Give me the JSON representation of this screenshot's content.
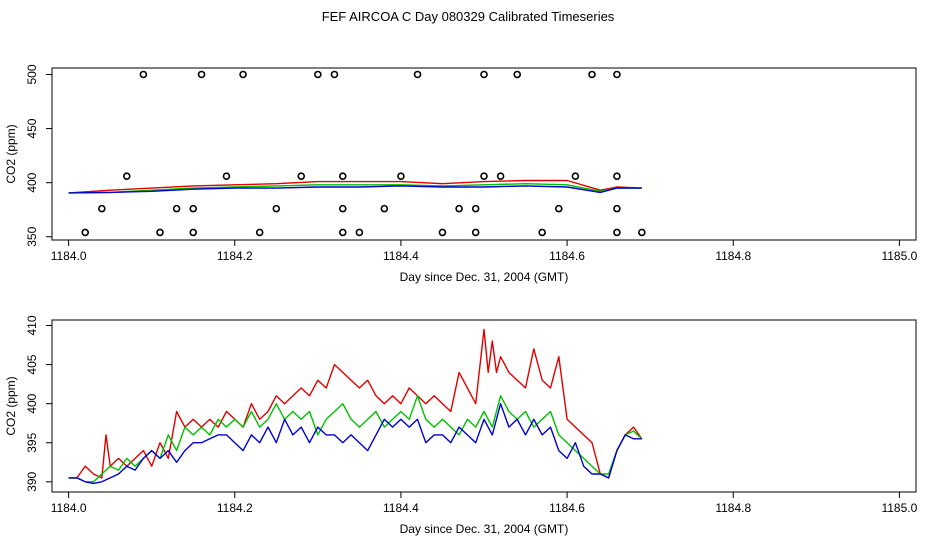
{
  "title": "FEF AIRCOA C  Day 080329  Calibrated Timeseries",
  "colors": {
    "red": "#e00000",
    "green": "#00c000",
    "blue": "#0000d0",
    "black": "#000000"
  },
  "chart_data": [
    {
      "type": "line+scatter",
      "xlabel": "Day since Dec. 31, 2004 (GMT)",
      "ylabel": "CO2 (ppm)",
      "xlim": [
        1183.98,
        1185.02
      ],
      "ylim": [
        347,
        506
      ],
      "xticks": [
        "1184.0",
        "1184.2",
        "1184.4",
        "1184.6",
        "1184.8",
        "1185.0"
      ],
      "yticks": [
        "350",
        "400",
        "450",
        "500"
      ],
      "series": [
        {
          "name": "red",
          "color": "#e00000",
          "x": [
            1184.0,
            1184.05,
            1184.1,
            1184.15,
            1184.2,
            1184.25,
            1184.3,
            1184.35,
            1184.4,
            1184.45,
            1184.5,
            1184.55,
            1184.6,
            1184.64,
            1184.66,
            1184.69
          ],
          "y": [
            390.5,
            393,
            395,
            397,
            398,
            399,
            401,
            401,
            401,
            399,
            401,
            402,
            402,
            393,
            396,
            395
          ]
        },
        {
          "name": "green",
          "color": "#00c000",
          "x": [
            1184.0,
            1184.05,
            1184.1,
            1184.15,
            1184.2,
            1184.25,
            1184.3,
            1184.35,
            1184.4,
            1184.45,
            1184.5,
            1184.55,
            1184.6,
            1184.64,
            1184.66,
            1184.69
          ],
          "y": [
            390.5,
            391,
            393,
            395,
            396,
            397,
            398,
            398,
            398,
            397,
            398,
            399,
            398,
            392,
            395,
            395
          ]
        },
        {
          "name": "blue",
          "color": "#0000d0",
          "x": [
            1184.0,
            1184.05,
            1184.1,
            1184.15,
            1184.2,
            1184.25,
            1184.3,
            1184.35,
            1184.4,
            1184.45,
            1184.5,
            1184.55,
            1184.6,
            1184.64,
            1184.66,
            1184.69
          ],
          "y": [
            390.5,
            391,
            392,
            394,
            395,
            395,
            396,
            396,
            397,
            396,
            396,
            397,
            396,
            391,
            395,
            395
          ]
        }
      ],
      "scatter": {
        "name": "open circles",
        "color": "#000000",
        "x": [
          1184.09,
          1184.16,
          1184.21,
          1184.3,
          1184.32,
          1184.42,
          1184.5,
          1184.54,
          1184.63,
          1184.66,
          1184.07,
          1184.19,
          1184.28,
          1184.33,
          1184.4,
          1184.5,
          1184.52,
          1184.61,
          1184.66,
          1184.04,
          1184.13,
          1184.15,
          1184.25,
          1184.33,
          1184.38,
          1184.47,
          1184.49,
          1184.59,
          1184.66,
          1184.02,
          1184.11,
          1184.15,
          1184.23,
          1184.33,
          1184.35,
          1184.45,
          1184.49,
          1184.57,
          1184.66,
          1184.69
        ],
        "y": [
          500,
          500,
          500,
          500,
          500,
          500,
          500,
          500,
          500,
          500,
          406,
          406,
          406,
          406,
          406,
          406,
          406,
          406,
          406,
          376,
          376,
          376,
          376,
          376,
          376,
          376,
          376,
          376,
          376,
          354,
          354,
          354,
          354,
          354,
          354,
          354,
          354,
          354,
          354,
          354
        ]
      }
    },
    {
      "type": "line",
      "xlabel": "Day since Dec. 31, 2004 (GMT)",
      "ylabel": "CO2 (ppm)",
      "xlim": [
        1183.98,
        1185.02
      ],
      "ylim": [
        388.7,
        410.7
      ],
      "xticks": [
        "1184.0",
        "1184.2",
        "1184.4",
        "1184.6",
        "1184.8",
        "1185.0"
      ],
      "yticks": [
        "390",
        "395",
        "400",
        "405",
        "410"
      ],
      "series": [
        {
          "name": "red",
          "color": "#e00000",
          "x": [
            1184.0,
            1184.01,
            1184.02,
            1184.03,
            1184.04,
            1184.045,
            1184.05,
            1184.06,
            1184.07,
            1184.08,
            1184.09,
            1184.1,
            1184.11,
            1184.12,
            1184.13,
            1184.14,
            1184.15,
            1184.16,
            1184.17,
            1184.18,
            1184.19,
            1184.2,
            1184.21,
            1184.22,
            1184.23,
            1184.24,
            1184.25,
            1184.26,
            1184.27,
            1184.28,
            1184.29,
            1184.3,
            1184.31,
            1184.32,
            1184.33,
            1184.34,
            1184.35,
            1184.36,
            1184.37,
            1184.38,
            1184.39,
            1184.4,
            1184.41,
            1184.42,
            1184.43,
            1184.44,
            1184.45,
            1184.46,
            1184.47,
            1184.48,
            1184.49,
            1184.5,
            1184.505,
            1184.51,
            1184.515,
            1184.52,
            1184.525,
            1184.53,
            1184.54,
            1184.55,
            1184.56,
            1184.57,
            1184.58,
            1184.59,
            1184.6,
            1184.61,
            1184.62,
            1184.63,
            1184.64,
            1184.65,
            1184.66,
            1184.67,
            1184.68,
            1184.69
          ],
          "y": [
            390.5,
            390.5,
            392,
            391,
            390.5,
            396,
            392,
            393,
            392,
            393,
            394,
            392,
            395,
            393,
            399,
            397,
            398,
            397,
            398,
            397,
            399,
            398,
            397,
            400,
            398,
            399,
            401,
            400,
            401,
            402,
            401,
            403,
            402,
            405,
            404,
            403,
            402,
            403,
            401,
            400,
            401,
            400,
            402,
            401,
            400,
            401,
            400,
            399,
            404,
            402,
            400,
            409.5,
            404,
            408,
            404,
            406,
            405,
            404,
            403,
            402,
            407,
            403,
            402,
            406,
            398,
            397,
            396,
            395,
            391,
            390.5,
            394,
            396,
            397,
            395.5
          ]
        },
        {
          "name": "green",
          "color": "#00c000",
          "x": [
            1184.0,
            1184.01,
            1184.02,
            1184.03,
            1184.04,
            1184.05,
            1184.06,
            1184.07,
            1184.08,
            1184.09,
            1184.1,
            1184.11,
            1184.12,
            1184.13,
            1184.14,
            1184.15,
            1184.16,
            1184.17,
            1184.18,
            1184.19,
            1184.2,
            1184.21,
            1184.22,
            1184.23,
            1184.24,
            1184.25,
            1184.26,
            1184.27,
            1184.28,
            1184.29,
            1184.3,
            1184.31,
            1184.32,
            1184.33,
            1184.34,
            1184.35,
            1184.36,
            1184.37,
            1184.38,
            1184.39,
            1184.4,
            1184.41,
            1184.42,
            1184.43,
            1184.44,
            1184.45,
            1184.46,
            1184.47,
            1184.48,
            1184.49,
            1184.5,
            1184.51,
            1184.52,
            1184.53,
            1184.54,
            1184.55,
            1184.56,
            1184.57,
            1184.58,
            1184.59,
            1184.6,
            1184.61,
            1184.62,
            1184.63,
            1184.64,
            1184.65,
            1184.66,
            1184.67,
            1184.68,
            1184.69
          ],
          "y": [
            390.5,
            390.5,
            390,
            390,
            391,
            392,
            391.5,
            393,
            392,
            393,
            394,
            393,
            396,
            394,
            397,
            396,
            397,
            396,
            398,
            397,
            398,
            397,
            399,
            397,
            398,
            400,
            398,
            399,
            398,
            399,
            396,
            398,
            399,
            400,
            398,
            397,
            398,
            399,
            397,
            398,
            399,
            398,
            401,
            398,
            397,
            398,
            397,
            396,
            398,
            397,
            399,
            397,
            401,
            399,
            398,
            399,
            397,
            398,
            399,
            396,
            395,
            394,
            393,
            392,
            391,
            391,
            394,
            396,
            396.5,
            395.5
          ]
        },
        {
          "name": "blue",
          "color": "#0000d0",
          "x": [
            1184.0,
            1184.01,
            1184.02,
            1184.03,
            1184.04,
            1184.05,
            1184.06,
            1184.07,
            1184.08,
            1184.09,
            1184.1,
            1184.11,
            1184.12,
            1184.13,
            1184.14,
            1184.15,
            1184.16,
            1184.17,
            1184.18,
            1184.19,
            1184.2,
            1184.21,
            1184.22,
            1184.23,
            1184.24,
            1184.25,
            1184.26,
            1184.27,
            1184.28,
            1184.29,
            1184.3,
            1184.31,
            1184.32,
            1184.33,
            1184.34,
            1184.35,
            1184.36,
            1184.37,
            1184.38,
            1184.39,
            1184.4,
            1184.41,
            1184.42,
            1184.43,
            1184.44,
            1184.45,
            1184.46,
            1184.47,
            1184.48,
            1184.49,
            1184.5,
            1184.51,
            1184.52,
            1184.53,
            1184.54,
            1184.55,
            1184.56,
            1184.57,
            1184.58,
            1184.59,
            1184.6,
            1184.61,
            1184.62,
            1184.63,
            1184.64,
            1184.65,
            1184.66,
            1184.67,
            1184.68,
            1184.69
          ],
          "y": [
            390.5,
            390.5,
            390,
            389.8,
            390,
            390.5,
            391,
            392,
            391.5,
            393,
            394,
            393,
            394,
            392.5,
            394,
            395,
            395,
            395.5,
            396,
            396,
            395,
            394,
            396,
            395,
            397,
            395,
            398,
            396,
            397,
            395,
            397,
            396,
            396,
            395,
            396,
            395,
            394,
            396,
            398,
            397,
            398,
            397,
            398,
            395,
            396,
            396,
            395,
            397,
            396,
            395,
            398,
            396,
            400,
            397,
            398,
            396,
            398,
            396,
            397,
            394,
            393,
            395,
            392,
            391,
            391,
            390.5,
            394,
            396,
            395.5,
            395.5
          ]
        }
      ]
    }
  ]
}
